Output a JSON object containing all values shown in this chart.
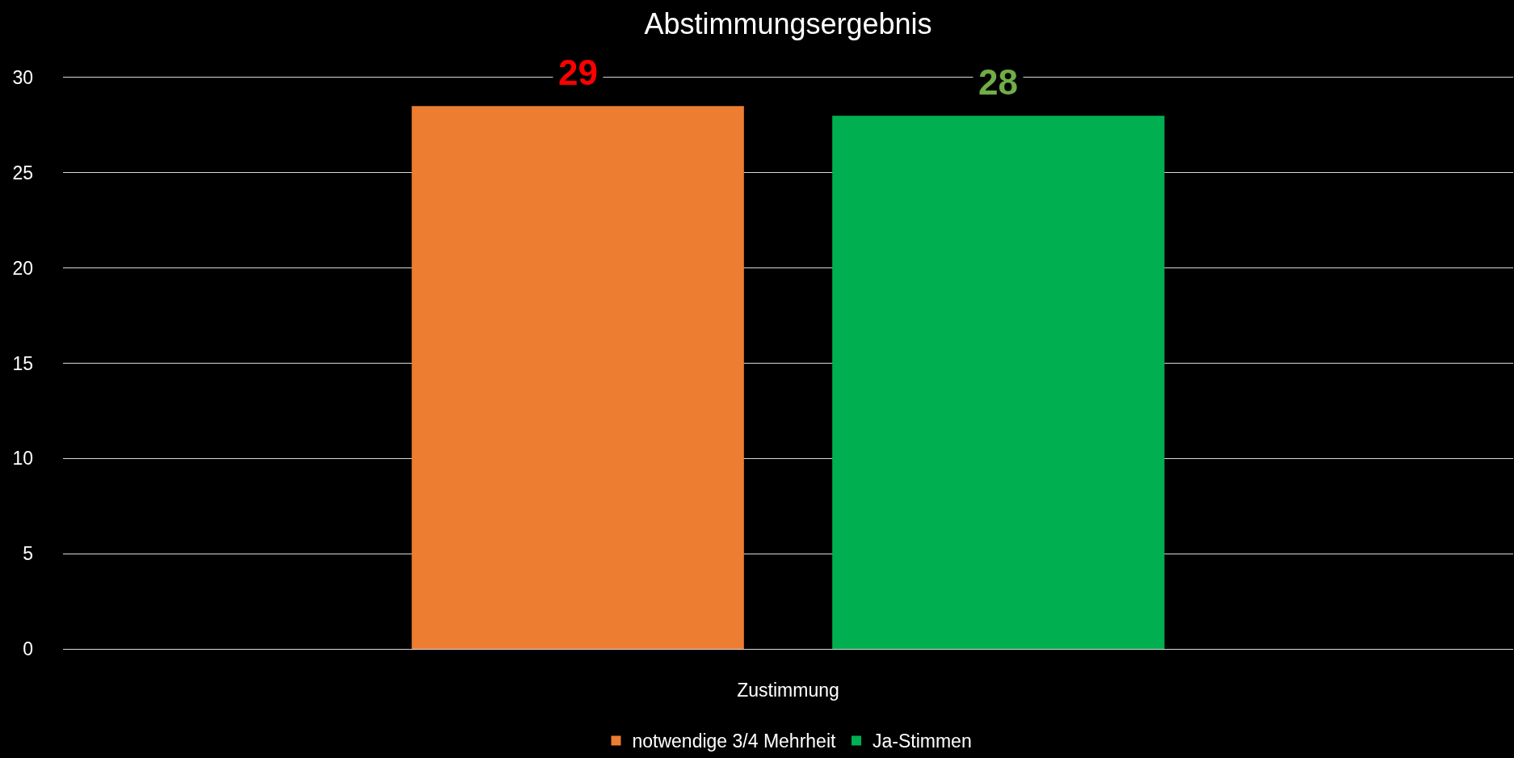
{
  "chart_data": {
    "type": "bar",
    "title": "Abstimmungsergebnis",
    "categories": [
      "Zustimmung"
    ],
    "series": [
      {
        "name": "notwendige 3/4 Mehrheit",
        "color": "#ed7d31",
        "values": [
          28.5
        ],
        "value_labels": [
          "29"
        ]
      },
      {
        "name": "Ja-Stimmen",
        "color": "#00b050",
        "values": [
          28
        ],
        "value_labels": [
          "28"
        ]
      }
    ],
    "ylim": [
      0,
      30
    ],
    "yticks": [
      0,
      5,
      10,
      15,
      20,
      25,
      30
    ],
    "grid": "y",
    "legend": "bottom"
  }
}
